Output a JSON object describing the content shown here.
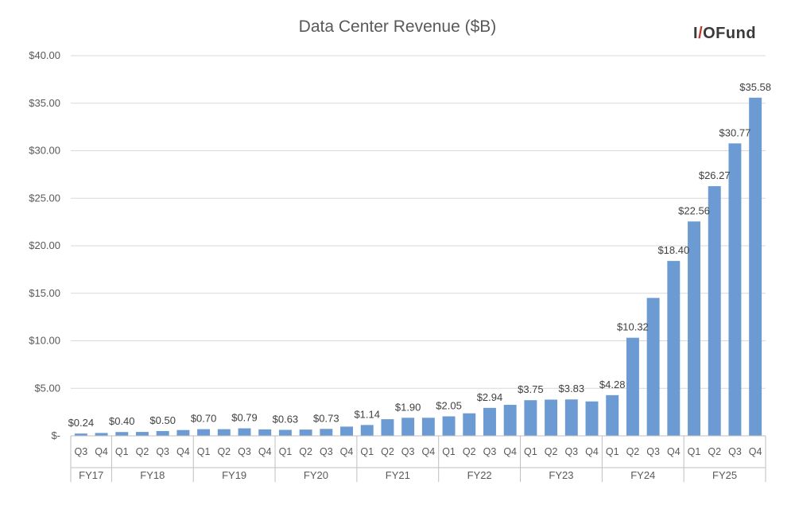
{
  "brand": {
    "part1": "I",
    "slash": "/",
    "part2": "OFund"
  },
  "chart_data": {
    "type": "bar",
    "title": "Data Center Revenue ($B)",
    "xlabel": "",
    "ylabel": "",
    "ylim": [
      0,
      40
    ],
    "yticks": [
      0,
      5,
      10,
      15,
      20,
      25,
      30,
      35,
      40
    ],
    "ytick_labels": [
      "$-",
      "$5.00",
      "$10.00",
      "$15.00",
      "$20.00",
      "$25.00",
      "$30.00",
      "$35.00",
      "$40.00"
    ],
    "bar_color": "#6b9bd2",
    "grid": true,
    "groups": [
      {
        "label": "FY17",
        "count": 2
      },
      {
        "label": "FY18",
        "count": 4
      },
      {
        "label": "FY19",
        "count": 4
      },
      {
        "label": "FY20",
        "count": 4
      },
      {
        "label": "FY21",
        "count": 4
      },
      {
        "label": "FY22",
        "count": 4
      },
      {
        "label": "FY23",
        "count": 4
      },
      {
        "label": "FY24",
        "count": 4
      },
      {
        "label": "FY25",
        "count": 4
      }
    ],
    "categories": [
      "Q3",
      "Q4",
      "Q1",
      "Q2",
      "Q3",
      "Q4",
      "Q1",
      "Q2",
      "Q3",
      "Q4",
      "Q1",
      "Q2",
      "Q3",
      "Q4",
      "Q1",
      "Q2",
      "Q3",
      "Q4",
      "Q1",
      "Q2",
      "Q3",
      "Q4",
      "Q1",
      "Q2",
      "Q3",
      "Q4",
      "Q1",
      "Q2",
      "Q3",
      "Q4",
      "Q1",
      "Q2",
      "Q3",
      "Q4"
    ],
    "values": [
      0.24,
      0.3,
      0.4,
      0.41,
      0.5,
      0.61,
      0.7,
      0.7,
      0.79,
      0.68,
      0.63,
      0.66,
      0.73,
      0.97,
      1.14,
      1.75,
      1.9,
      1.9,
      2.05,
      2.37,
      2.94,
      3.26,
      3.75,
      3.81,
      3.83,
      3.62,
      4.28,
      10.32,
      14.51,
      18.4,
      22.56,
      26.27,
      30.77,
      35.58
    ],
    "data_labels": [
      "$0.24",
      null,
      "$0.40",
      null,
      "$0.50",
      null,
      "$0.70",
      null,
      "$0.79",
      null,
      "$0.63",
      null,
      "$0.73",
      null,
      "$1.14",
      null,
      "$1.90",
      null,
      "$2.05",
      null,
      "$2.94",
      null,
      "$3.75",
      null,
      "$3.83",
      null,
      "$4.28",
      "$10.32",
      null,
      "$18.40",
      "$22.56",
      "$26.27",
      "$30.77",
      "$35.58"
    ]
  }
}
